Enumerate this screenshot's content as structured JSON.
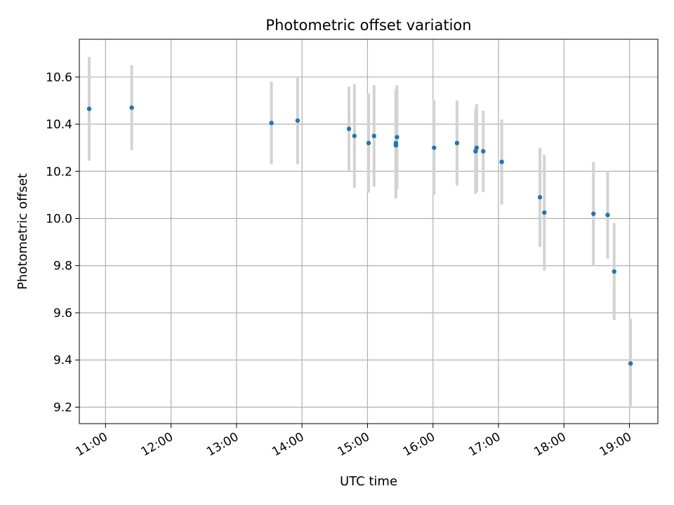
{
  "chart_data": {
    "type": "scatter",
    "title": "Photometric offset variation",
    "xlabel": "UTC time",
    "ylabel": "Photometric offset",
    "x_axis_type": "time",
    "x_range": [
      "10:36",
      "19:26"
    ],
    "ylim": [
      9.13,
      10.76
    ],
    "x_ticks": [
      "11:00",
      "12:00",
      "13:00",
      "14:00",
      "15:00",
      "16:00",
      "17:00",
      "18:00",
      "19:00"
    ],
    "y_ticks": [
      "9.2",
      "9.4",
      "9.6",
      "9.8",
      "10.0",
      "10.2",
      "10.4",
      "10.6"
    ],
    "grid": true,
    "colors": {
      "points": "#1f77b4",
      "error_bars": "#d3d3d3",
      "grid": "#b0b0b0"
    },
    "points": [
      {
        "x": "10:45",
        "y": 10.465,
        "err": 0.22
      },
      {
        "x": "11:24",
        "y": 10.47,
        "err": 0.18
      },
      {
        "x": "13:32",
        "y": 10.405,
        "err": 0.175
      },
      {
        "x": "13:56",
        "y": 10.415,
        "err": 0.185
      },
      {
        "x": "14:43",
        "y": 10.38,
        "err": 0.18
      },
      {
        "x": "14:48",
        "y": 10.35,
        "err": 0.22
      },
      {
        "x": "15:01",
        "y": 10.32,
        "err": 0.21
      },
      {
        "x": "15:06",
        "y": 10.35,
        "err": 0.215
      },
      {
        "x": "15:26",
        "y": 10.31,
        "err": 0.225
      },
      {
        "x": "15:26",
        "y": 10.32,
        "err": 0.23
      },
      {
        "x": "15:27",
        "y": 10.345,
        "err": 0.22
      },
      {
        "x": "16:01",
        "y": 10.3,
        "err": 0.2
      },
      {
        "x": "16:22",
        "y": 10.32,
        "err": 0.18
      },
      {
        "x": "16:39",
        "y": 10.285,
        "err": 0.18
      },
      {
        "x": "16:40",
        "y": 10.3,
        "err": 0.185
      },
      {
        "x": "16:46",
        "y": 10.285,
        "err": 0.172
      },
      {
        "x": "17:03",
        "y": 10.24,
        "err": 0.18
      },
      {
        "x": "17:38",
        "y": 10.09,
        "err": 0.21
      },
      {
        "x": "17:42",
        "y": 10.025,
        "err": 0.245
      },
      {
        "x": "18:27",
        "y": 10.02,
        "err": 0.22
      },
      {
        "x": "18:40",
        "y": 10.015,
        "err": 0.185
      },
      {
        "x": "18:46",
        "y": 9.775,
        "err": 0.205
      },
      {
        "x": "19:01",
        "y": 9.385,
        "err": 0.19
      }
    ]
  }
}
